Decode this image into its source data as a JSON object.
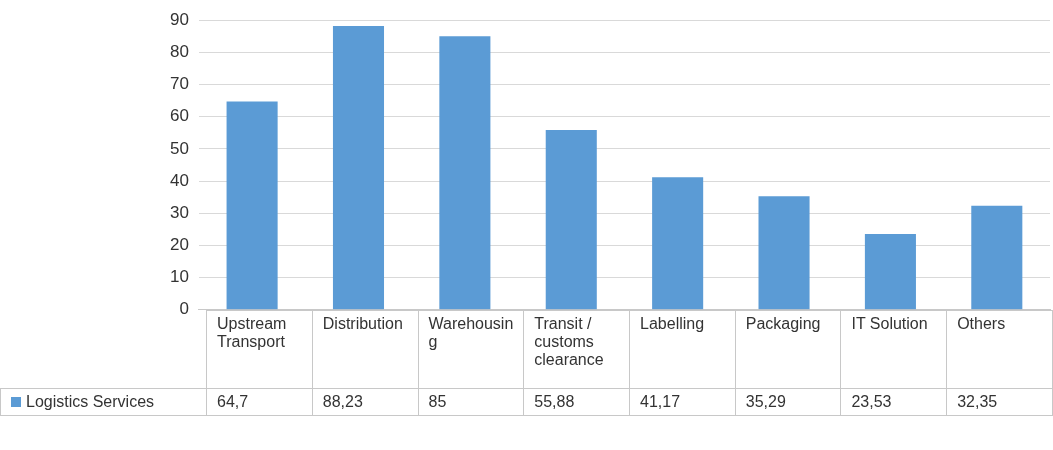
{
  "chart_data": {
    "type": "bar",
    "categories": [
      "Upstream Transport",
      "Distribution",
      "Warehousing",
      "Transit / customs clearance",
      "Labelling",
      "Packaging",
      "IT Solution",
      "Others"
    ],
    "series": [
      {
        "name": "Logistics Services",
        "color": "#5b9bd5",
        "values": [
          64.7,
          88.23,
          85,
          55.88,
          41.17,
          35.29,
          23.53,
          32.35
        ],
        "value_labels": [
          "64,7",
          "88,23",
          "85",
          "55,88",
          "41,17",
          "35,29",
          "23,53",
          "32,35"
        ]
      }
    ],
    "ylim": [
      0,
      90
    ],
    "yticks": [
      0,
      10,
      20,
      30,
      40,
      50,
      60,
      70,
      80,
      90
    ],
    "grid": "y",
    "legend": "bottom"
  }
}
